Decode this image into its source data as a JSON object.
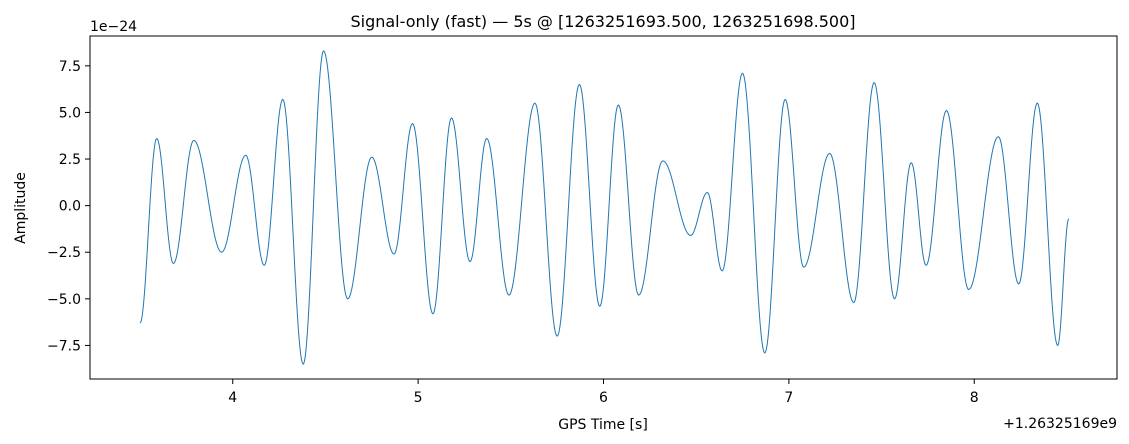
{
  "chart_data": {
    "type": "line",
    "title": "Signal-only (fast) — 5s @ [1263251693.500, 1263251698.500]",
    "xlabel": "GPS Time [s]",
    "ylabel": "Amplitude",
    "x_offset_text": "+1.26325169e9",
    "y_scale_text": "1e−24",
    "x_offset_value": 1263251690,
    "y_scale_exponent": -24,
    "xlim": [
      3.23,
      8.77
    ],
    "ylim": [
      -9.3,
      9.1
    ],
    "x_ticks": [
      4,
      5,
      6,
      7,
      8
    ],
    "x_tick_labels": [
      "4",
      "5",
      "6",
      "7",
      "8"
    ],
    "y_ticks": [
      -7.5,
      -5.0,
      -2.5,
      0.0,
      2.5,
      5.0,
      7.5
    ],
    "y_tick_labels": [
      "−7.5",
      "−5.0",
      "−2.5",
      "0.0",
      "2.5",
      "5.0",
      "7.5"
    ],
    "grid": false,
    "line_color": "#1f77b4",
    "series": [
      {
        "x_units_note": "x values are shown relative to the offset; y values in units of 1e-24",
        "points": [
          [
            3.5,
            -6.3
          ],
          [
            3.59,
            3.6
          ],
          [
            3.68,
            -3.1
          ],
          [
            3.79,
            3.5
          ],
          [
            3.94,
            -2.5
          ],
          [
            4.07,
            2.7
          ],
          [
            4.17,
            -3.2
          ],
          [
            4.27,
            5.7
          ],
          [
            4.38,
            -8.5
          ],
          [
            4.49,
            8.3
          ],
          [
            4.62,
            -5.0
          ],
          [
            4.75,
            2.6
          ],
          [
            4.87,
            -2.6
          ],
          [
            4.97,
            4.4
          ],
          [
            5.08,
            -5.8
          ],
          [
            5.18,
            4.7
          ],
          [
            5.28,
            -3.0
          ],
          [
            5.37,
            3.6
          ],
          [
            5.49,
            -4.8
          ],
          [
            5.63,
            5.5
          ],
          [
            5.75,
            -7.0
          ],
          [
            5.87,
            6.5
          ],
          [
            5.98,
            -5.4
          ],
          [
            6.08,
            5.4
          ],
          [
            6.19,
            -4.8
          ],
          [
            6.32,
            2.4
          ],
          [
            6.47,
            -1.6
          ],
          [
            6.56,
            0.7
          ],
          [
            6.64,
            -3.5
          ],
          [
            6.75,
            7.1
          ],
          [
            6.87,
            -7.9
          ],
          [
            6.98,
            5.7
          ],
          [
            7.08,
            -3.3
          ],
          [
            7.22,
            2.8
          ],
          [
            7.35,
            -5.2
          ],
          [
            7.46,
            6.6
          ],
          [
            7.57,
            -5.0
          ],
          [
            7.66,
            2.3
          ],
          [
            7.74,
            -3.2
          ],
          [
            7.85,
            5.1
          ],
          [
            7.97,
            -4.5
          ],
          [
            8.13,
            3.7
          ],
          [
            8.24,
            -4.2
          ],
          [
            8.34,
            5.5
          ],
          [
            8.45,
            -7.5
          ],
          [
            8.51,
            -0.7
          ]
        ]
      }
    ]
  }
}
